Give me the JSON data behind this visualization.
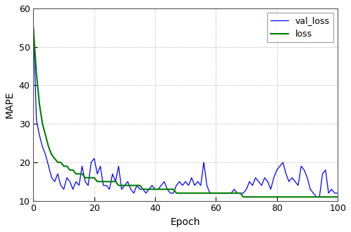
{
  "title": "",
  "xlabel": "Epoch",
  "ylabel": "MAPE",
  "xlim": [
    0,
    100
  ],
  "ylim": [
    10,
    60
  ],
  "yticks": [
    10,
    20,
    30,
    40,
    50,
    60
  ],
  "xticks": [
    0,
    20,
    40,
    60,
    80,
    100
  ],
  "val_loss_color": "#0000FF",
  "loss_color": "#008000",
  "background_color": "#ffffff",
  "grid_color": "#aaaaaa",
  "legend_labels": [
    "val_loss",
    "loss"
  ],
  "val_loss": [
    55,
    31,
    27,
    24,
    22,
    19,
    16,
    15,
    17,
    14,
    13,
    16,
    15,
    13,
    15,
    14,
    19,
    15,
    14,
    20,
    21,
    17,
    19,
    14,
    14,
    13,
    17,
    15,
    19,
    13,
    14,
    15,
    13,
    12,
    14,
    13,
    13,
    12,
    13,
    14,
    13,
    13,
    14,
    15,
    13,
    12,
    12,
    14,
    15,
    14,
    15,
    14,
    16,
    14,
    15,
    14,
    20,
    14,
    12,
    12,
    12,
    12,
    12,
    12,
    12,
    12,
    13,
    12,
    12,
    12,
    13,
    15,
    14,
    16,
    15,
    14,
    16,
    15,
    13,
    16,
    18,
    19,
    20,
    17,
    15,
    16,
    15,
    14,
    19,
    18,
    16,
    13,
    12,
    11,
    11,
    17,
    18,
    12,
    13,
    12,
    12
  ],
  "loss": [
    55,
    43,
    35,
    30,
    27,
    24,
    22,
    21,
    20,
    20,
    19,
    19,
    18,
    18,
    17,
    17,
    17,
    16,
    16,
    16,
    16,
    15,
    15,
    15,
    15,
    15,
    15,
    15,
    14,
    14,
    14,
    14,
    14,
    14,
    14,
    14,
    13,
    13,
    13,
    13,
    13,
    13,
    13,
    13,
    13,
    13,
    13,
    12,
    12,
    12,
    12,
    12,
    12,
    12,
    12,
    12,
    12,
    12,
    12,
    12,
    12,
    12,
    12,
    12,
    12,
    12,
    12,
    12,
    12,
    11,
    11,
    11,
    11,
    11,
    11,
    11,
    11,
    11,
    11,
    11,
    11,
    11,
    11,
    11,
    11,
    11,
    11,
    11,
    11,
    11,
    11,
    11,
    11,
    11,
    11,
    11,
    11,
    11,
    11,
    11,
    11
  ]
}
